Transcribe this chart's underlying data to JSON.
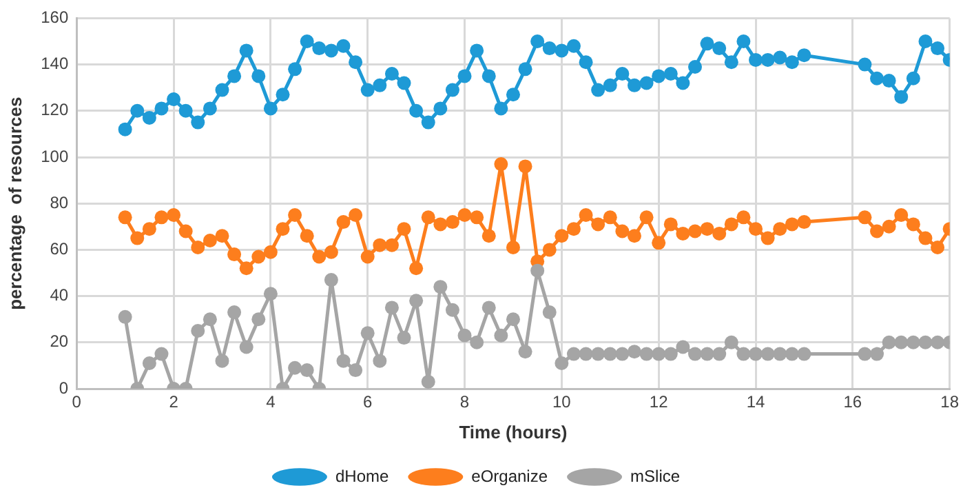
{
  "chart_data": {
    "type": "line",
    "xlabel": "Time (hours)",
    "ylabel": "percentage  of resources",
    "x": [
      1,
      1.25,
      1.5,
      1.75,
      2,
      2.25,
      2.5,
      2.75,
      3,
      3.25,
      3.5,
      3.75,
      4,
      4.25,
      4.5,
      4.75,
      5,
      5.25,
      5.5,
      5.75,
      6,
      6.25,
      6.5,
      6.75,
      7,
      7.25,
      7.5,
      7.75,
      8,
      8.25,
      8.5,
      8.75,
      9,
      9.25,
      9.5,
      9.75,
      10,
      10.25,
      10.5,
      10.75,
      11,
      11.25,
      11.5,
      11.75,
      12,
      12.25,
      12.5,
      12.75,
      13,
      13.25,
      13.5,
      13.75,
      14,
      14.25,
      14.5,
      14.75,
      15,
      16.25,
      16.5,
      16.75,
      17,
      17.25,
      17.5,
      17.75,
      18
    ],
    "series": [
      {
        "name": "dHome",
        "color": "#1e9ad6",
        "values": [
          112,
          120,
          117,
          121,
          125,
          120,
          115,
          121,
          129,
          135,
          146,
          135,
          121,
          127,
          138,
          150,
          147,
          146,
          148,
          141,
          129,
          131,
          136,
          132,
          120,
          115,
          121,
          129,
          135,
          146,
          135,
          121,
          127,
          138,
          150,
          147,
          146,
          148,
          141,
          129,
          131,
          136,
          131,
          132,
          135,
          136,
          132,
          139,
          149,
          147,
          141,
          150,
          142,
          142,
          143,
          141,
          144,
          140,
          134,
          133,
          126,
          134,
          150,
          147,
          142
        ]
      },
      {
        "name": "eOrganize",
        "color": "#fd7e1d",
        "values": [
          74,
          65,
          69,
          74,
          75,
          68,
          61,
          64,
          66,
          58,
          52,
          57,
          59,
          69,
          75,
          66,
          57,
          59,
          72,
          75,
          57,
          62,
          62,
          69,
          52,
          74,
          71,
          72,
          75,
          74,
          66,
          97,
          61,
          96,
          55,
          60,
          66,
          69,
          75,
          71,
          74,
          68,
          66,
          74,
          63,
          71,
          67,
          68,
          69,
          67,
          71,
          74,
          69,
          65,
          69,
          71,
          72,
          74,
          68,
          70,
          75,
          71,
          65,
          61,
          69
        ]
      },
      {
        "name": "mSlice",
        "color": "#a5a5a5",
        "values": [
          31,
          0,
          11,
          15,
          0,
          0,
          25,
          30,
          12,
          33,
          18,
          30,
          41,
          0,
          9,
          8,
          0,
          47,
          12,
          8,
          24,
          12,
          35,
          22,
          38,
          3,
          44,
          34,
          23,
          20,
          35,
          23,
          30,
          16,
          51,
          33,
          11,
          15,
          15,
          15,
          15,
          15,
          16,
          15,
          15,
          15,
          18,
          15,
          15,
          15,
          20,
          15,
          15,
          15,
          15,
          15,
          15,
          15,
          15,
          20,
          20,
          20,
          20,
          20,
          20
        ]
      }
    ],
    "xlim": [
      0,
      18
    ],
    "xticks": [
      0,
      2,
      4,
      6,
      8,
      10,
      12,
      14,
      16,
      18
    ],
    "ylim": [
      0,
      160
    ],
    "yticks": [
      0,
      20,
      40,
      60,
      80,
      100,
      120,
      140,
      160
    ],
    "grid": true,
    "legend": "bottom",
    "marker": "circle",
    "line_style": "solid"
  }
}
